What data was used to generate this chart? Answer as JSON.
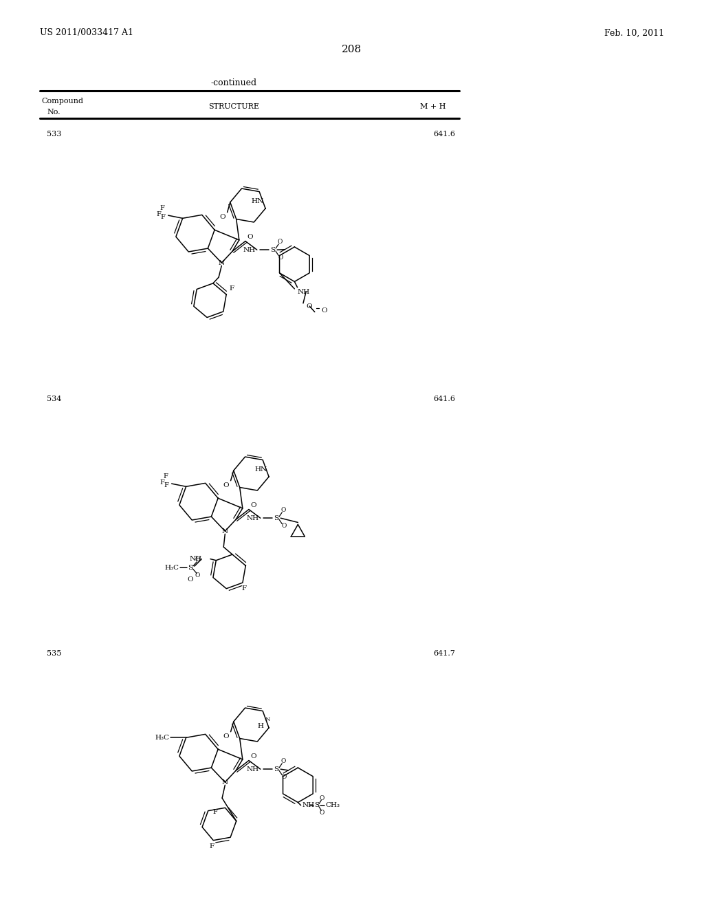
{
  "page_number": "208",
  "patent_number": "US 2011/0033417 A1",
  "patent_date": "Feb. 10, 2011",
  "continued_label": "-continued",
  "col_compound": "Compound",
  "col_no": "No.",
  "col_structure": "STRUCTURE",
  "col_mh": "M + H",
  "compounds": [
    {
      "no": "533",
      "mh": "641.6"
    },
    {
      "no": "534",
      "mh": "641.6"
    },
    {
      "no": "535",
      "mh": "641.7"
    }
  ],
  "bg": "#ffffff",
  "lc": "#000000"
}
